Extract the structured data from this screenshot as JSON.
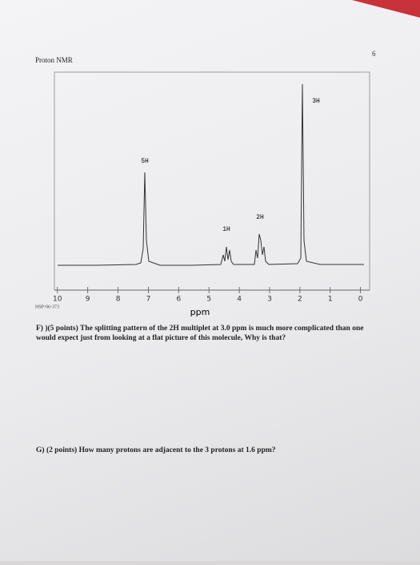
{
  "page_number": "6",
  "figure": {
    "title": "Proton NMR",
    "xlabel": "ppm",
    "code": "HSP-06-373",
    "xlim": [
      10.1,
      -0.3
    ],
    "xticks": [
      10,
      9,
      8,
      7,
      6,
      5,
      4,
      3,
      2,
      1,
      0
    ],
    "peak_labels": [
      "5H",
      "1H",
      "2H",
      "3H"
    ]
  },
  "questions": [
    {
      "label": "F)",
      "text": ")(5 points) The splitting pattern of the 2H multiplet at 3.0 ppm is much more complicated than one would expect just from looking at a flat picture of this molecule, Why is that?"
    },
    {
      "label": "G)",
      "text": "(2 points) How many protons are adjacent to the 3 protons at 1.6 ppm?"
    }
  ]
}
